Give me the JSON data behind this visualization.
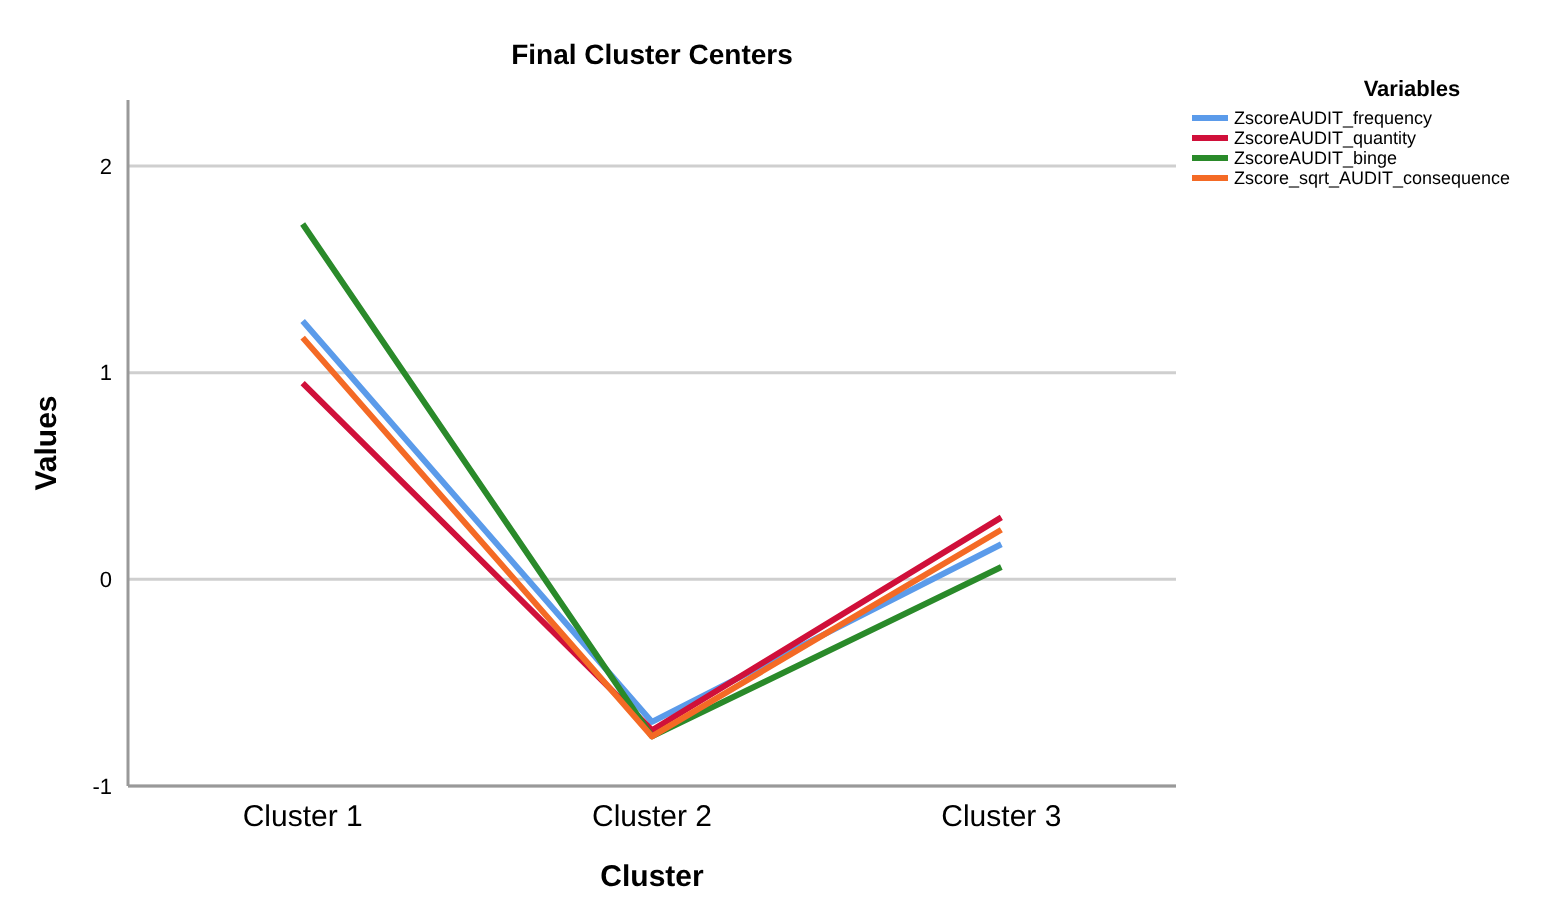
{
  "chart_data": {
    "type": "line",
    "title": "Final Cluster Centers",
    "xlabel": "Cluster",
    "ylabel": "Values",
    "legend_title": "Variables",
    "categories": [
      "Cluster 1",
      "Cluster 2",
      "Cluster 3"
    ],
    "series": [
      {
        "name": "ZscoreAUDIT_frequency",
        "color": "#5b9bea",
        "values": [
          1.25,
          -0.69,
          0.17
        ]
      },
      {
        "name": "ZscoreAUDIT_quantity",
        "color": "#d0103a",
        "values": [
          0.95,
          -0.73,
          0.3
        ]
      },
      {
        "name": "ZscoreAUDIT_binge",
        "color": "#2a8a2a",
        "values": [
          1.72,
          -0.76,
          0.06
        ]
      },
      {
        "name": "Zscore_sqrt_AUDIT_consequence",
        "color": "#f46a25",
        "values": [
          1.17,
          -0.76,
          0.24
        ]
      }
    ],
    "ylim": [
      -1,
      2.32
    ],
    "yticks": [
      -1,
      0,
      1,
      2
    ],
    "grid": "y",
    "legend": "top right",
    "marker": "none",
    "line_style": "solid"
  }
}
